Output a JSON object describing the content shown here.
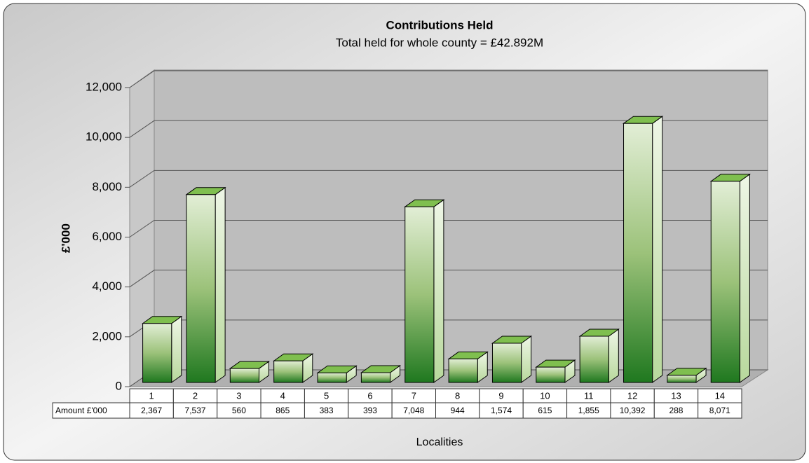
{
  "chart_data": {
    "type": "bar3d",
    "title": "Contributions Held",
    "subtitle": "Total held for whole county = £42.892M",
    "ylabel": "£'000",
    "xlabel": "Localities",
    "table_row_label": "Amount £'000",
    "categories": [
      "1",
      "2",
      "3",
      "4",
      "5",
      "6",
      "7",
      "8",
      "9",
      "10",
      "11",
      "12",
      "13",
      "14"
    ],
    "values": [
      2367,
      7537,
      560,
      865,
      383,
      393,
      7048,
      944,
      1574,
      615,
      1855,
      10392,
      288,
      8071
    ],
    "value_labels": [
      "2,367",
      "7,537",
      "560",
      "865",
      "383",
      "393",
      "7,048",
      "944",
      "1,574",
      "615",
      "1,855",
      "10,392",
      "288",
      "8,071"
    ],
    "color": "#2e8b2e",
    "ylim": [
      0,
      12000
    ],
    "yticks": [
      0,
      {
        "value": 2000,
        "label": "2,000"
      },
      {
        "value": 4000,
        "label": "4,000"
      },
      {
        "value": 6000,
        "label": "6,000"
      },
      {
        "value": 8000,
        "label": "8,000"
      },
      {
        "value": 10000,
        "label": "10,000"
      },
      {
        "value": 12000,
        "label": "12,000"
      }
    ],
    "grid": true
  }
}
